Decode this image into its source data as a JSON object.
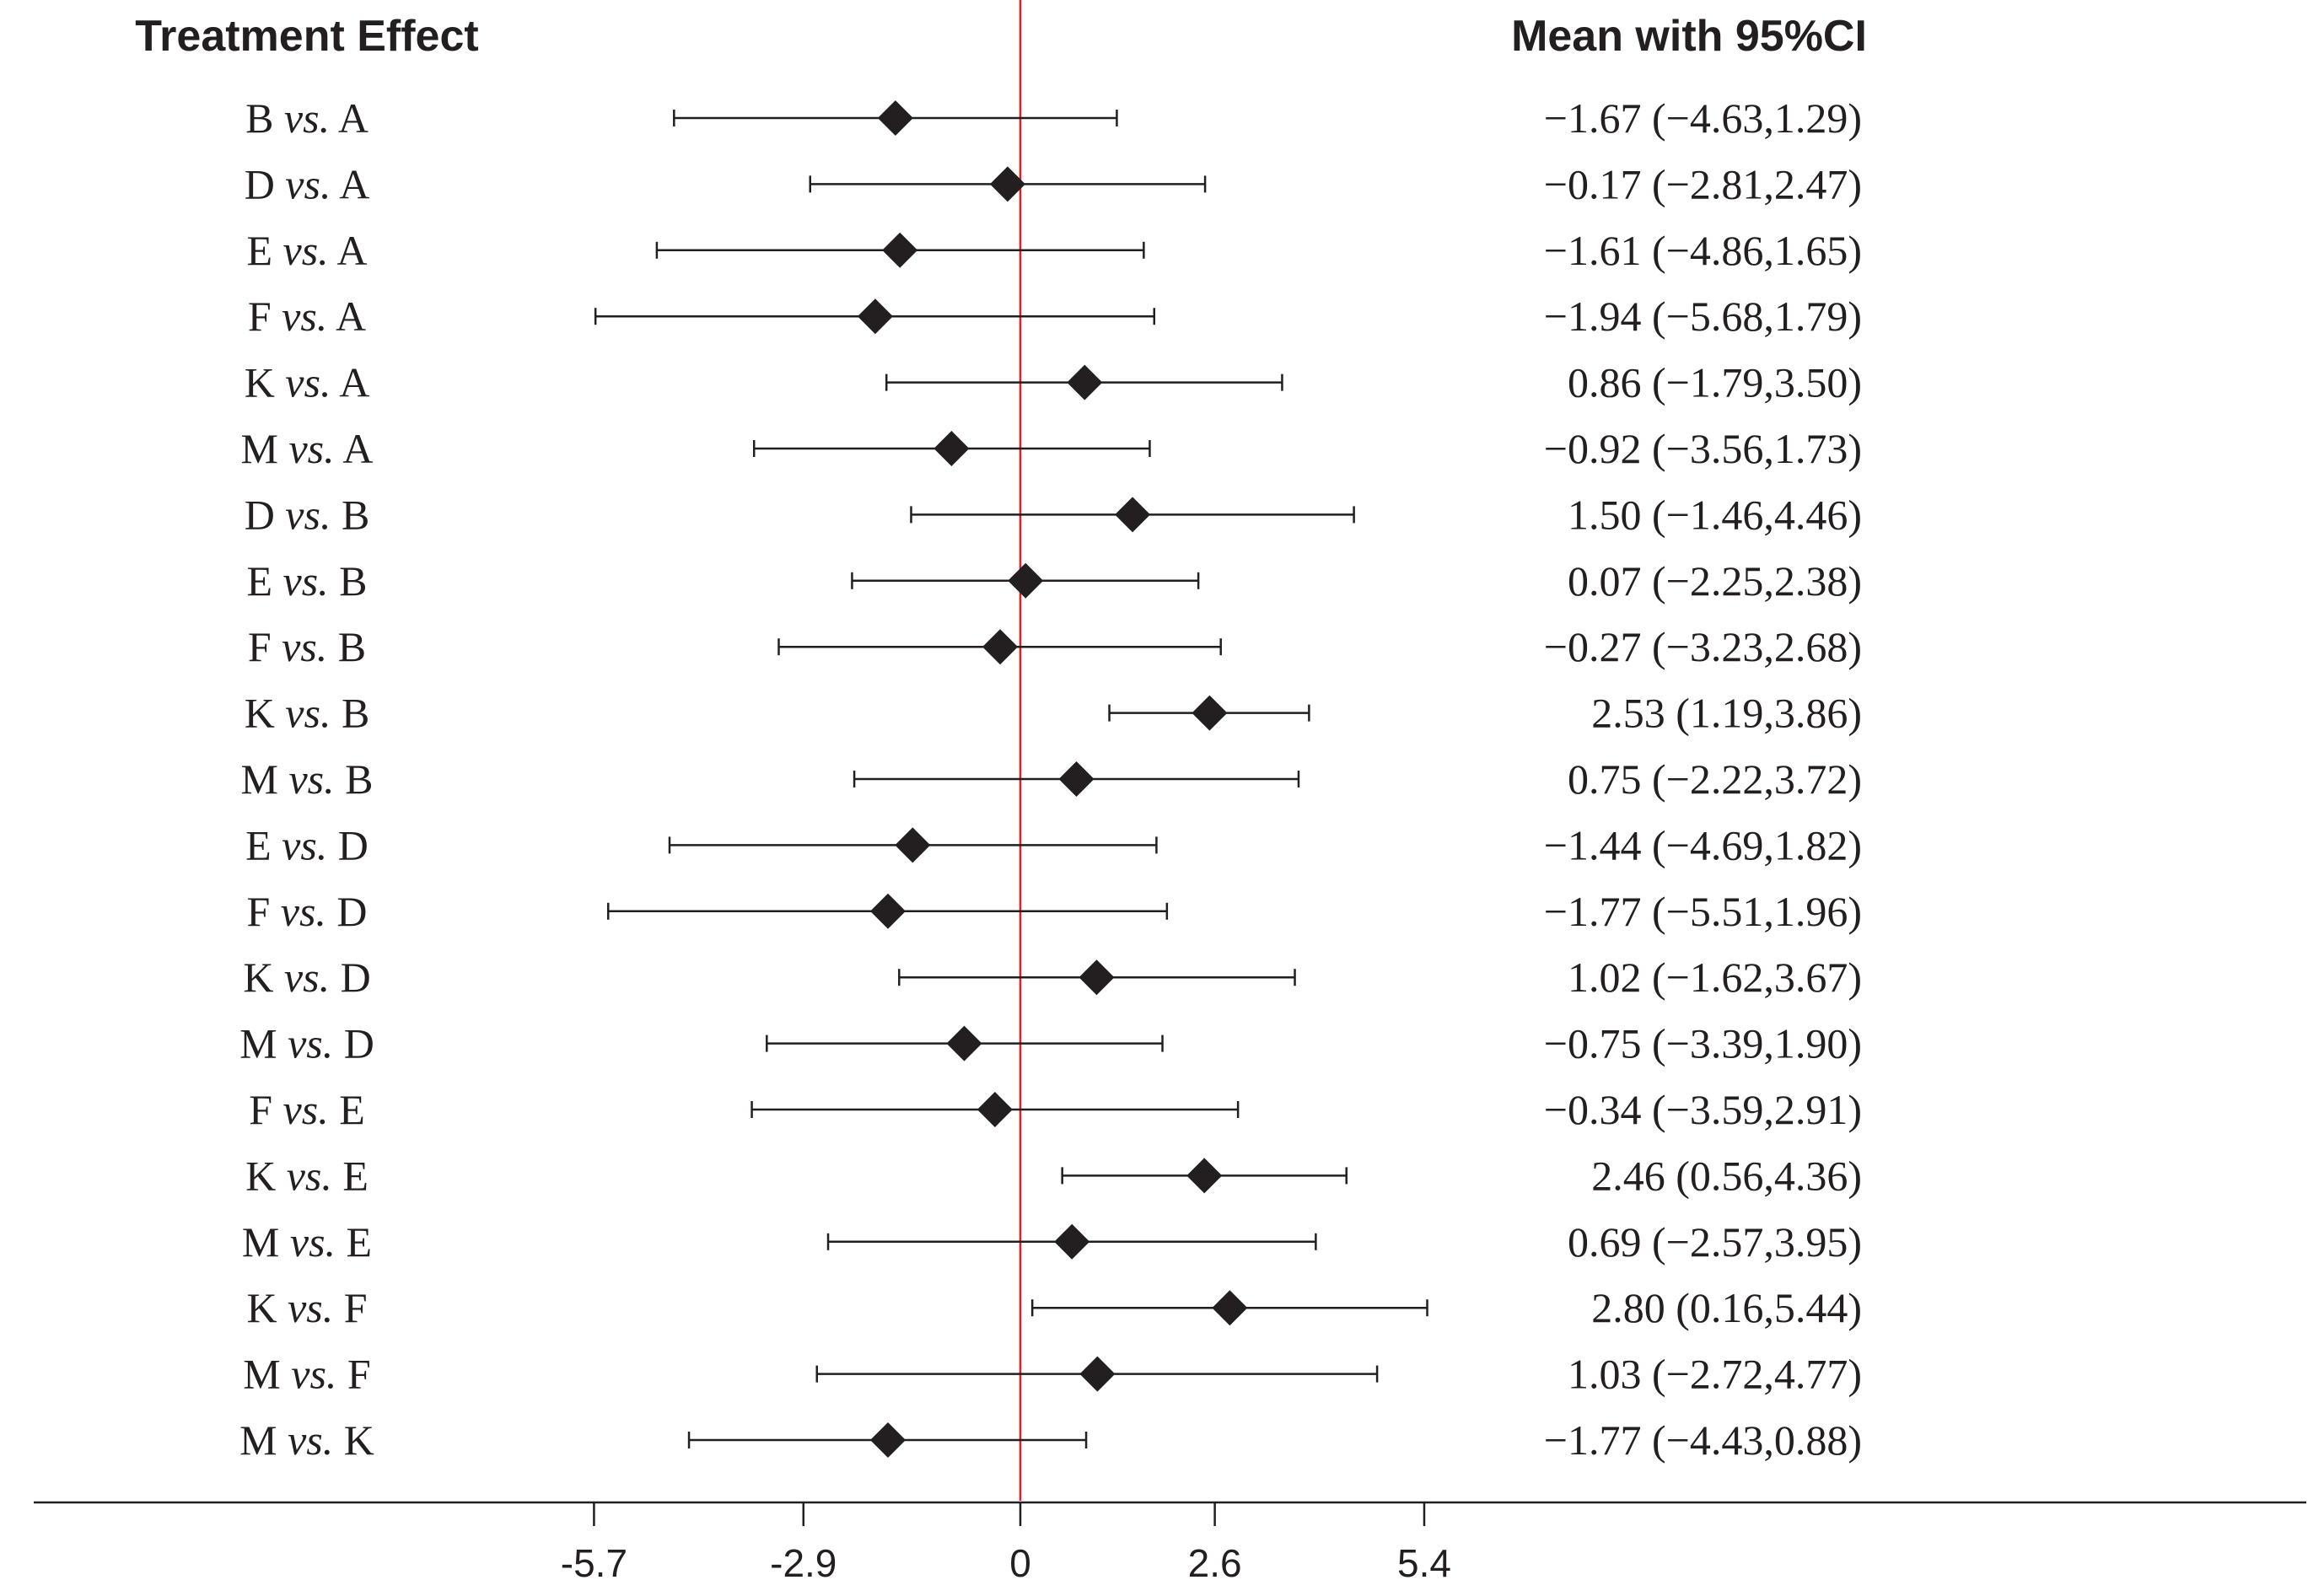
{
  "chart_data": {
    "type": "forest",
    "headers": {
      "left": "Treatment Effect",
      "right": "Mean with 95%CI"
    },
    "rows": [
      {
        "first": "B",
        "second": "A",
        "sep": "vs.",
        "mean": -1.67,
        "lo": -4.63,
        "hi": 1.29,
        "text": "−1.67 (−4.63,1.29)"
      },
      {
        "first": "D",
        "second": "A",
        "sep": "vs.",
        "mean": -0.17,
        "lo": -2.81,
        "hi": 2.47,
        "text": "−0.17 (−2.81,2.47)"
      },
      {
        "first": "E",
        "second": "A",
        "sep": "vs.",
        "mean": -1.61,
        "lo": -4.86,
        "hi": 1.65,
        "text": "−1.61 (−4.86,1.65)"
      },
      {
        "first": "F",
        "second": "A",
        "sep": "vs.",
        "mean": -1.94,
        "lo": -5.68,
        "hi": 1.79,
        "text": "−1.94 (−5.68,1.79)"
      },
      {
        "first": "K",
        "second": "A",
        "sep": "vs.",
        "mean": 0.86,
        "lo": -1.79,
        "hi": 3.5,
        "text": "0.86 (−1.79,3.50)"
      },
      {
        "first": "M",
        "second": "A",
        "sep": "vs.",
        "mean": -0.92,
        "lo": -3.56,
        "hi": 1.73,
        "text": "−0.92 (−3.56,1.73)"
      },
      {
        "first": "D",
        "second": "B",
        "sep": "vs.",
        "mean": 1.5,
        "lo": -1.46,
        "hi": 4.46,
        "text": "1.50 (−1.46,4.46)"
      },
      {
        "first": "E",
        "second": "B",
        "sep": "vs.",
        "mean": 0.07,
        "lo": -2.25,
        "hi": 2.38,
        "text": "0.07 (−2.25,2.38)"
      },
      {
        "first": "F",
        "second": "B",
        "sep": "vs.",
        "mean": -0.27,
        "lo": -3.23,
        "hi": 2.68,
        "text": "−0.27 (−3.23,2.68)"
      },
      {
        "first": "K",
        "second": "B",
        "sep": "vs.",
        "mean": 2.53,
        "lo": 1.19,
        "hi": 3.86,
        "text": "2.53 (1.19,3.86)"
      },
      {
        "first": "M",
        "second": "B",
        "sep": "vs.",
        "mean": 0.75,
        "lo": -2.22,
        "hi": 3.72,
        "text": "0.75 (−2.22,3.72)"
      },
      {
        "first": "E",
        "second": "D",
        "sep": "vs.",
        "mean": -1.44,
        "lo": -4.69,
        "hi": 1.82,
        "text": "−1.44 (−4.69,1.82)"
      },
      {
        "first": "F",
        "second": "D",
        "sep": "vs.",
        "mean": -1.77,
        "lo": -5.51,
        "hi": 1.96,
        "text": "−1.77 (−5.51,1.96)"
      },
      {
        "first": "K",
        "second": "D",
        "sep": "vs.",
        "mean": 1.02,
        "lo": -1.62,
        "hi": 3.67,
        "text": "1.02 (−1.62,3.67)"
      },
      {
        "first": "M",
        "second": "D",
        "sep": "vs.",
        "mean": -0.75,
        "lo": -3.39,
        "hi": 1.9,
        "text": "−0.75 (−3.39,1.90)"
      },
      {
        "first": "F",
        "second": "E",
        "sep": "vs.",
        "mean": -0.34,
        "lo": -3.59,
        "hi": 2.91,
        "text": "−0.34 (−3.59,2.91)"
      },
      {
        "first": "K",
        "second": "E",
        "sep": "vs.",
        "mean": 2.46,
        "lo": 0.56,
        "hi": 4.36,
        "text": "2.46 (0.56,4.36)"
      },
      {
        "first": "M",
        "second": "E",
        "sep": "vs.",
        "mean": 0.69,
        "lo": -2.57,
        "hi": 3.95,
        "text": "0.69 (−2.57,3.95)"
      },
      {
        "first": "K",
        "second": "F",
        "sep": "vs.",
        "mean": 2.8,
        "lo": 0.16,
        "hi": 5.44,
        "text": "2.80 (0.16,5.44)"
      },
      {
        "first": "M",
        "second": "F",
        "sep": "vs.",
        "mean": 1.03,
        "lo": -2.72,
        "hi": 4.77,
        "text": "1.03 (−2.72,4.77)"
      },
      {
        "first": "M",
        "second": "K",
        "sep": "vs.",
        "mean": -1.77,
        "lo": -4.43,
        "hi": 0.88,
        "text": "−1.77 (−4.43,0.88)"
      }
    ],
    "x_ticks": [
      -5.7,
      -2.9,
      0,
      2.6,
      5.4
    ],
    "x_tick_labels": [
      "-5.7",
      "-2.9",
      "0",
      "2.6",
      "5.4"
    ],
    "reference_line": 0,
    "colors": {
      "ink": "#231f20",
      "reference": "#e31e24"
    }
  }
}
